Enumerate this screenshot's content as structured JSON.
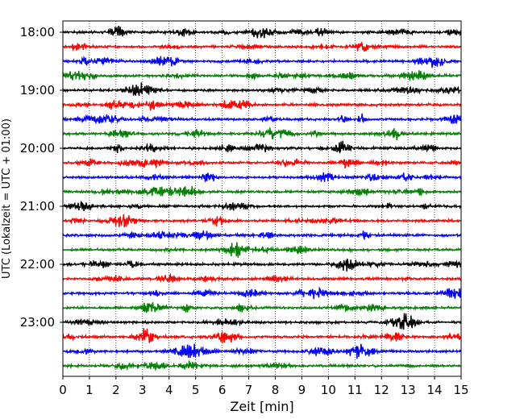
{
  "chart_data": {
    "type": "line",
    "title": "",
    "xlabel": "Zeit  [min]",
    "ylabel": "UTC (Lokalzeit = UTC + 01:00)",
    "xlim": [
      0,
      15
    ],
    "x_ticks": [
      "0",
      "1",
      "2",
      "3",
      "4",
      "5",
      "6",
      "7",
      "8",
      "9",
      "10",
      "11",
      "12",
      "13",
      "14",
      "15"
    ],
    "y_tick_labels": [
      "18:00",
      "19:00",
      "20:00",
      "21:00",
      "22:00",
      "23:00"
    ],
    "y_tick_rows": [
      0,
      4,
      8,
      12,
      16,
      20
    ],
    "grid": "vertical dotted lines at each minute",
    "row_colors": [
      "#000000",
      "#ff0000",
      "#0000ff",
      "#008000"
    ],
    "trace_count": 24,
    "trace_minutes": 15
  }
}
